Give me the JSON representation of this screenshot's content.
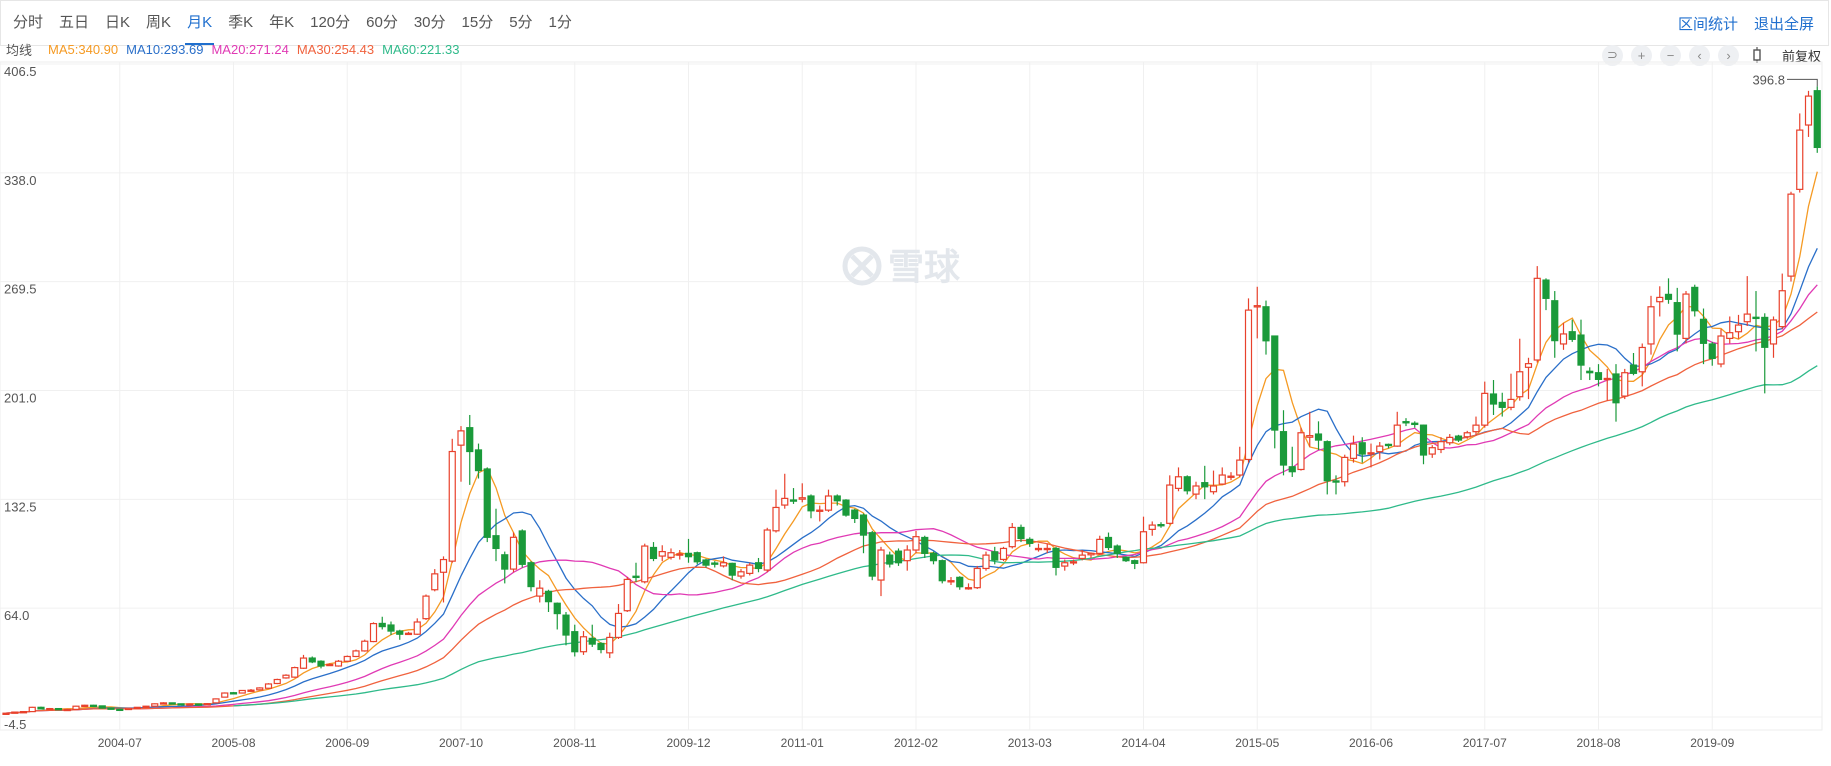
{
  "tabs": [
    {
      "label": "分时",
      "active": false
    },
    {
      "label": "五日",
      "active": false
    },
    {
      "label": "日K",
      "active": false
    },
    {
      "label": "周K",
      "active": false
    },
    {
      "label": "月K",
      "active": true
    },
    {
      "label": "季K",
      "active": false
    },
    {
      "label": "年K",
      "active": false
    },
    {
      "label": "120分",
      "active": false
    },
    {
      "label": "60分",
      "active": false
    },
    {
      "label": "30分",
      "active": false
    },
    {
      "label": "15分",
      "active": false
    },
    {
      "label": "5分",
      "active": false
    },
    {
      "label": "1分",
      "active": false
    }
  ],
  "links": {
    "range_stats": "区间统计",
    "exit_fullscreen": "退出全屏"
  },
  "legend": {
    "label": "均线",
    "items": [
      {
        "text": "MA5:340.90",
        "color": "#f59a23"
      },
      {
        "text": "MA10:293.69",
        "color": "#2a6fc9"
      },
      {
        "text": "MA20:271.24",
        "color": "#e03ab4"
      },
      {
        "text": "MA30:254.43",
        "color": "#f0623e"
      },
      {
        "text": "MA60:221.33",
        "color": "#2fba8a"
      }
    ]
  },
  "toolbar": {
    "icons": [
      "undo-icon",
      "zoom-in-icon",
      "zoom-out-icon",
      "chevron-left-icon",
      "chevron-right-icon",
      "candlestick-icon"
    ],
    "adjust_label": "前复权"
  },
  "watermark": "雪球",
  "chart_data": {
    "type": "candlestick",
    "period": "monthly",
    "colors": {
      "up": "#e8412c",
      "down": "#1a9a3a",
      "grid": "#f0f0f0"
    },
    "ylim": [
      -4.5,
      406.5
    ],
    "y_ticks": [
      "406.5",
      "338.0",
      "269.5",
      "201.0",
      "132.5",
      "64.0",
      "-4.5"
    ],
    "x_labels": [
      "2004-07",
      "2005-08",
      "2006-09",
      "2007-10",
      "2008-11",
      "2009-12",
      "2011-01",
      "2012-02",
      "2013-03",
      "2014-04",
      "2015-05",
      "2016-06",
      "2017-07",
      "2018-08",
      "2019-09"
    ],
    "max_marker": "396.8",
    "ma_periods": [
      5,
      10,
      20,
      30,
      60
    ],
    "ohlc": [
      [
        2.0,
        2.6,
        1.6,
        2.3
      ],
      [
        2.3,
        3.2,
        2.1,
        3.0
      ],
      [
        3.0,
        3.6,
        2.6,
        3.3
      ],
      [
        3.3,
        6.3,
        3.1,
        6.0
      ],
      [
        6.0,
        6.4,
        4.6,
        5.0
      ],
      [
        5.0,
        5.6,
        4.6,
        5.2
      ],
      [
        5.2,
        5.4,
        4.3,
        4.5
      ],
      [
        4.5,
        5.0,
        4.2,
        4.7
      ],
      [
        4.7,
        7.0,
        4.5,
        6.7
      ],
      [
        6.7,
        7.6,
        6.3,
        7.3
      ],
      [
        7.3,
        7.6,
        6.6,
        6.9
      ],
      [
        6.9,
        7.1,
        5.2,
        5.5
      ],
      [
        5.5,
        5.7,
        4.6,
        4.8
      ],
      [
        4.8,
        5.2,
        4.3,
        4.6
      ],
      [
        4.6,
        5.6,
        4.4,
        5.4
      ],
      [
        5.4,
        6.2,
        5.2,
        6.0
      ],
      [
        6.0,
        6.9,
        5.8,
        6.7
      ],
      [
        6.7,
        8.5,
        6.5,
        8.2
      ],
      [
        8.2,
        9.2,
        7.9,
        8.8
      ],
      [
        8.8,
        9.0,
        7.9,
        8.2
      ],
      [
        8.2,
        8.4,
        7.6,
        7.9
      ],
      [
        7.9,
        8.3,
        7.6,
        8.1
      ],
      [
        8.1,
        8.4,
        7.8,
        8.0
      ],
      [
        8.0,
        8.6,
        7.8,
        8.3
      ],
      [
        8.8,
        11.6,
        8.6,
        11.3
      ],
      [
        12.4,
        15.4,
        12.2,
        15.0
      ],
      [
        15.2,
        15.6,
        14.6,
        14.8
      ],
      [
        15.0,
        16.9,
        14.7,
        16.6
      ],
      [
        16.6,
        17.5,
        16.2,
        16.8
      ],
      [
        17.0,
        18.6,
        16.8,
        18.2
      ],
      [
        18.0,
        21.2,
        17.8,
        20.7
      ],
      [
        21.0,
        24.0,
        20.6,
        23.5
      ],
      [
        24.5,
        26.8,
        24.0,
        26.2
      ],
      [
        25.0,
        31.6,
        24.6,
        31.0
      ],
      [
        30.6,
        39.0,
        30.2,
        37.0
      ],
      [
        37.0,
        38.0,
        33.8,
        34.6
      ],
      [
        35.0,
        35.6,
        30.5,
        32.0
      ],
      [
        32.8,
        33.6,
        32.2,
        33.0
      ],
      [
        32.0,
        35.8,
        31.6,
        35.0
      ],
      [
        35.0,
        38.6,
        34.6,
        38.0
      ],
      [
        38.0,
        42.3,
        37.6,
        41.5
      ],
      [
        41.5,
        48.6,
        41.0,
        47.6
      ],
      [
        47.4,
        59.5,
        47.0,
        58.7
      ],
      [
        58.8,
        63.0,
        55.0,
        56.8
      ],
      [
        57.8,
        60.0,
        51.5,
        54.0
      ],
      [
        54.0,
        54.8,
        48.5,
        52.0
      ],
      [
        52.5,
        53.5,
        51.6,
        52.6
      ],
      [
        52.0,
        62.0,
        51.6,
        59.7
      ],
      [
        61.8,
        77.0,
        61.0,
        76.0
      ],
      [
        80.0,
        93.0,
        79.0,
        90.0
      ],
      [
        91.0,
        101.0,
        72.0,
        99.0
      ],
      [
        98.0,
        175.0,
        97.0,
        167.0
      ],
      [
        171.0,
        183.0,
        148.0,
        180.0
      ],
      [
        182.0,
        190.0,
        146.0,
        167.0
      ],
      [
        168.0,
        172.0,
        150.0,
        155.0
      ],
      [
        156.0,
        157.0,
        110.0,
        113.0
      ],
      [
        114.0,
        131.0,
        98.0,
        106.0
      ],
      [
        102.0,
        104.0,
        84.0,
        93.0
      ],
      [
        93.0,
        116.0,
        91.0,
        113.0
      ],
      [
        117.0,
        118.0,
        94.0,
        96.0
      ],
      [
        97.0,
        98.0,
        79.0,
        82.0
      ],
      [
        76.0,
        86.0,
        72.0,
        81.0
      ],
      [
        79.0,
        80.0,
        66.0,
        72.5
      ],
      [
        71.5,
        72.0,
        55.0,
        65.0
      ],
      [
        64.0,
        66.0,
        45.0,
        51.5
      ],
      [
        53.6,
        58.0,
        38.0,
        41.0
      ],
      [
        41.0,
        54.0,
        39.0,
        50.4
      ],
      [
        49.4,
        58.0,
        44.0,
        45.8
      ],
      [
        46.2,
        47.0,
        40.0,
        42.4
      ],
      [
        40.3,
        53.0,
        37.0,
        50.0
      ],
      [
        50.0,
        71.0,
        49.0,
        65.1
      ],
      [
        66.8,
        88.0,
        66.0,
        86.5
      ],
      [
        88.5,
        97.0,
        85.0,
        88.2
      ],
      [
        85.0,
        109.0,
        84.0,
        107.5
      ],
      [
        106.6,
        110.0,
        98.0,
        99.7
      ],
      [
        101.2,
        108.0,
        98.0,
        104.0
      ],
      [
        100.4,
        106.0,
        99.0,
        103.3
      ],
      [
        102.0,
        105.0,
        99.0,
        102.5
      ],
      [
        102.9,
        112.0,
        97.0,
        100.8
      ],
      [
        103.3,
        104.0,
        96.0,
        97.6
      ],
      [
        98.7,
        99.5,
        94.0,
        95.5
      ],
      [
        96.8,
        98.0,
        94.0,
        96.6
      ],
      [
        95.0,
        101.0,
        94.0,
        97.0
      ],
      [
        96.6,
        97.0,
        86.0,
        89.2
      ],
      [
        88.6,
        93.0,
        87.0,
        91.3
      ],
      [
        90.3,
        97.0,
        89.0,
        95.5
      ],
      [
        97.0,
        100.0,
        91.0,
        93.4
      ],
      [
        92.4,
        119.0,
        91.0,
        117.6
      ],
      [
        117.1,
        143.0,
        116.0,
        131.8
      ],
      [
        133.3,
        153.0,
        131.0,
        137.5
      ],
      [
        136.5,
        144.0,
        134.0,
        136.0
      ],
      [
        137.0,
        147.0,
        135.0,
        137.9
      ],
      [
        139.0,
        140.0,
        125.0,
        129.7
      ],
      [
        129.5,
        133.0,
        123.0,
        130.1
      ],
      [
        130.1,
        143.0,
        129.0,
        139.0
      ],
      [
        139.0,
        140.0,
        133.0,
        136.0
      ],
      [
        136.4,
        137.0,
        126.0,
        127.0
      ],
      [
        130.1,
        131.0,
        122.0,
        124.9
      ],
      [
        127.0,
        128.0,
        103.0,
        114.4
      ],
      [
        115.9,
        117.0,
        86.0,
        88.6
      ],
      [
        86.1,
        107.0,
        76.0,
        105.0
      ],
      [
        101.8,
        104.0,
        94.0,
        96.2
      ],
      [
        104.3,
        106.0,
        95.0,
        97.0
      ],
      [
        98.3,
        108.0,
        92.0,
        105.0
      ],
      [
        105.0,
        117.0,
        103.0,
        113.4
      ],
      [
        112.9,
        114.0,
        100.0,
        102.9
      ],
      [
        102.9,
        104.0,
        96.0,
        98.3
      ],
      [
        98.3,
        99.0,
        84.0,
        85.7
      ],
      [
        85.0,
        88.0,
        83.0,
        85.7
      ],
      [
        87.8,
        88.5,
        80.0,
        81.9
      ],
      [
        80.8,
        84.0,
        80.0,
        81.3
      ],
      [
        81.3,
        95.0,
        80.5,
        93.4
      ],
      [
        93.4,
        104.0,
        92.0,
        101.8
      ],
      [
        103.9,
        107.0,
        96.0,
        98.7
      ],
      [
        99.1,
        107.0,
        98.0,
        106.0
      ],
      [
        107.1,
        122.0,
        106.0,
        119.2
      ],
      [
        119.2,
        121.0,
        110.0,
        112.3
      ],
      [
        111.7,
        113.0,
        107.0,
        109.2
      ],
      [
        105.5,
        109.0,
        104.0,
        106.0
      ],
      [
        105.5,
        109.0,
        103.0,
        106.0
      ],
      [
        106.0,
        107.0,
        89.0,
        94.1
      ],
      [
        94.9,
        99.0,
        92.0,
        97.0
      ],
      [
        97.0,
        99.0,
        95.5,
        97.6
      ],
      [
        99.7,
        105.0,
        98.5,
        101.8
      ],
      [
        102.0,
        103.5,
        100.0,
        102.9
      ],
      [
        102.9,
        114.0,
        102.0,
        111.7
      ],
      [
        112.9,
        116.0,
        105.0,
        106.6
      ],
      [
        107.5,
        108.5,
        100.0,
        102.9
      ],
      [
        100.5,
        101.0,
        97.5,
        98.3
      ],
      [
        98.3,
        99.0,
        93.0,
        96.6
      ],
      [
        97.0,
        126.0,
        96.5,
        116.5
      ],
      [
        118.0,
        123.0,
        114.0,
        120.7
      ],
      [
        121.0,
        122.5,
        119.0,
        120.7
      ],
      [
        121.8,
        152.0,
        121.0,
        145.9
      ],
      [
        143.8,
        157.0,
        142.0,
        151.1
      ],
      [
        151.1,
        152.0,
        140.0,
        142.3
      ],
      [
        140.2,
        148.0,
        137.0,
        145.3
      ],
      [
        147.4,
        158.0,
        137.0,
        144.8
      ],
      [
        141.7,
        155.0,
        140.0,
        145.3
      ],
      [
        146.5,
        157.0,
        146.0,
        152.2
      ],
      [
        151.0,
        154.0,
        149.0,
        151.5
      ],
      [
        152.2,
        170.0,
        151.0,
        161.6
      ],
      [
        162.0,
        263.4,
        160.0,
        256.0
      ],
      [
        258.0,
        270.7,
        238.2,
        258.8
      ],
      [
        258.1,
        262.0,
        228.0,
        236.7
      ],
      [
        239.7,
        240.0,
        169.0,
        180.5
      ],
      [
        179.5,
        193.0,
        152.0,
        158.5
      ],
      [
        157.4,
        170.0,
        151.0,
        154.3
      ],
      [
        155.7,
        182.0,
        155.0,
        178.8
      ],
      [
        176.0,
        192.0,
        170.0,
        177.0
      ],
      [
        178.0,
        186.0,
        168.0,
        174.2
      ],
      [
        173.2,
        174.0,
        140.0,
        148.6
      ],
      [
        148.5,
        152.0,
        140.0,
        148.0
      ],
      [
        148.0,
        165.0,
        145.0,
        163.3
      ],
      [
        162.7,
        177.0,
        160.0,
        171.7
      ],
      [
        172.5,
        176.0,
        160.0,
        165.4
      ],
      [
        165.5,
        172.0,
        157.0,
        166.2
      ],
      [
        166.9,
        173.0,
        162.0,
        170.4
      ],
      [
        171.5,
        172.0,
        169.0,
        171.0
      ],
      [
        170.4,
        192.0,
        170.0,
        183.6
      ],
      [
        185.8,
        188.0,
        183.0,
        185.3
      ],
      [
        184.8,
        186.0,
        182.0,
        184.3
      ],
      [
        183.6,
        184.0,
        159.0,
        164.8
      ],
      [
        165.4,
        171.0,
        163.0,
        169.4
      ],
      [
        168.3,
        176.0,
        166.0,
        173.2
      ],
      [
        172.5,
        178.0,
        171.0,
        175.9
      ],
      [
        176.7,
        177.5,
        173.0,
        174.2
      ],
      [
        176.3,
        180.0,
        175.0,
        178.8
      ],
      [
        179.5,
        189.0,
        177.0,
        183.6
      ],
      [
        183.6,
        211.0,
        182.0,
        203.6
      ],
      [
        203.2,
        212.0,
        190.0,
        196.9
      ],
      [
        197.9,
        204.0,
        189.0,
        194.8
      ],
      [
        194.8,
        216.0,
        193.0,
        199.8
      ],
      [
        201.5,
        238.0,
        199.0,
        217.2
      ],
      [
        220.0,
        226.0,
        200.0,
        222.3
      ],
      [
        224.6,
        283.7,
        223.0,
        276.0
      ],
      [
        274.9,
        276.0,
        256.0,
        263.4
      ],
      [
        261.9,
        268.0,
        226.0,
        236.8
      ],
      [
        234.7,
        248.0,
        231.0,
        241.0
      ],
      [
        242.4,
        250.0,
        236.0,
        237.6
      ],
      [
        240.3,
        250.0,
        212.0,
        221.4
      ],
      [
        217.5,
        220.0,
        212.0,
        216.6
      ],
      [
        216.6,
        222.0,
        208.0,
        212.4
      ],
      [
        212.4,
        219.0,
        199.0,
        213.0
      ],
      [
        215.8,
        222.0,
        185.8,
        197.7
      ],
      [
        201.9,
        219.0,
        200.0,
        216.6
      ],
      [
        221.4,
        229.0,
        215.0,
        216.2
      ],
      [
        217.2,
        235.0,
        208.0,
        232.5
      ],
      [
        234.7,
        265.0,
        228.0,
        258.1
      ],
      [
        261.3,
        271.0,
        252.0,
        264.0
      ],
      [
        265.9,
        276.0,
        260.0,
        262.8
      ],
      [
        260.7,
        270.0,
        230.0,
        240.9
      ],
      [
        238.2,
        268.0,
        235.0,
        266.1
      ],
      [
        270.3,
        272.0,
        252.0,
        255.6
      ],
      [
        250.2,
        257.0,
        222.0,
        235.1
      ],
      [
        234.7,
        236.0,
        221.0,
        225.6
      ],
      [
        222.1,
        244.0,
        220.0,
        239.7
      ],
      [
        238.2,
        252.0,
        235.0,
        241.8
      ],
      [
        242.4,
        253.0,
        238.0,
        246.6
      ],
      [
        248.7,
        277.4,
        246.0,
        253.5
      ],
      [
        251.5,
        268.0,
        230.0,
        250.8
      ],
      [
        251.4,
        254.0,
        203.6,
        232.6
      ],
      [
        234.7,
        252.0,
        226.0,
        249.8
      ],
      [
        245.6,
        279.0,
        244.0,
        268.2
      ],
      [
        277.4,
        330.5,
        274.0,
        329.0
      ],
      [
        332.0,
        379.8,
        330.0,
        369.3
      ],
      [
        372.5,
        394.0,
        365.0,
        390.7
      ],
      [
        394.1,
        396.8,
        355.0,
        358.4
      ]
    ]
  }
}
